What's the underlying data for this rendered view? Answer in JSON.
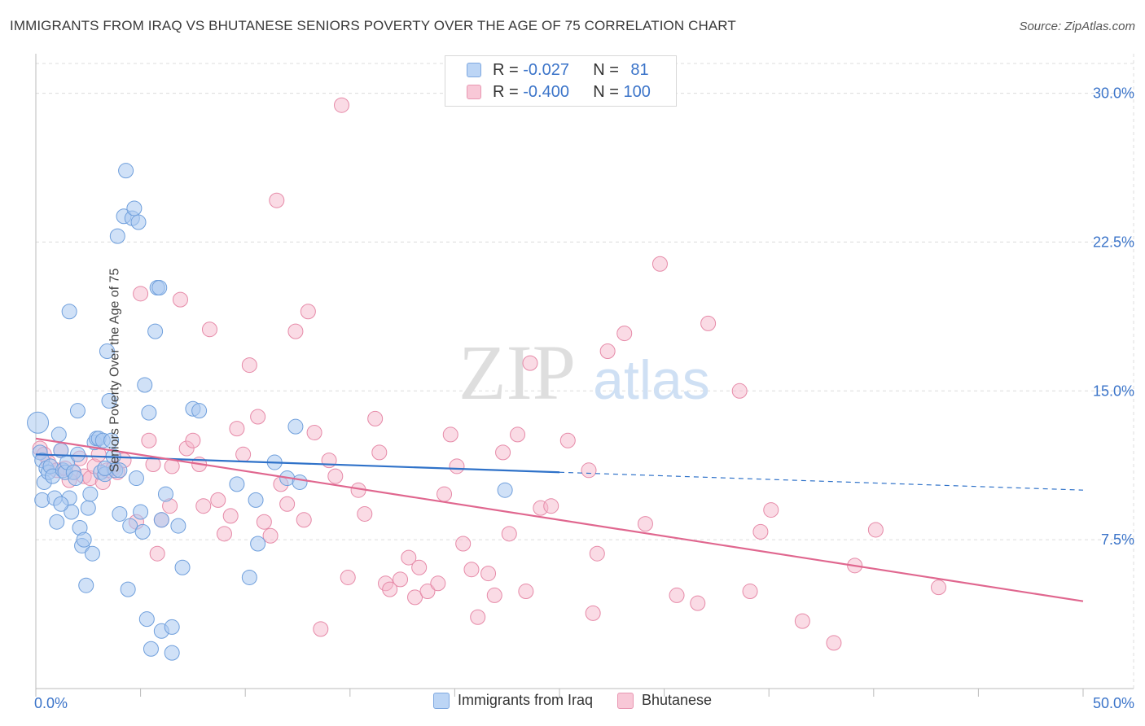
{
  "header": {
    "title": "IMMIGRANTS FROM IRAQ VS BHUTANESE SENIORS POVERTY OVER THE AGE OF 75 CORRELATION CHART",
    "source": "Source: ZipAtlas.com"
  },
  "watermark": {
    "zip": "ZIP",
    "atlas": "atlas"
  },
  "legend": {
    "rows": [
      {
        "r_label": "R =",
        "r_value": "-0.027",
        "n_label": "N =",
        "n_value": "81"
      },
      {
        "r_label": "R =",
        "r_value": "-0.400",
        "n_label": "N =",
        "n_value": "100"
      }
    ]
  },
  "colors": {
    "blue_fill": "#a9c8f0",
    "blue_stroke": "#6f9fdc",
    "blue_line": "#2f72c9",
    "pink_fill": "#f5b8cb",
    "pink_stroke": "#e68aa8",
    "pink_line": "#e0678f",
    "axis_text": "#3b74c9",
    "grid": "#dcdcdc"
  },
  "chart_data": {
    "type": "scatter",
    "title": "IMMIGRANTS FROM IRAQ VS BHUTANESE SENIORS POVERTY OVER THE AGE OF 75 CORRELATION CHART",
    "xlabel": "",
    "ylabel": "Seniors Poverty Over the Age of 75",
    "xlim": [
      0,
      50
    ],
    "ylim": [
      0,
      31.5
    ],
    "x_tick_labels": [
      "0.0%",
      "50.0%"
    ],
    "y_ticks": [
      7.5,
      15.0,
      22.5,
      30.0
    ],
    "y_tick_labels": [
      "7.5%",
      "15.0%",
      "22.5%",
      "30.0%"
    ],
    "grid": true,
    "legend_position": "top-center",
    "series": [
      {
        "name": "Immigrants from Iraq",
        "color": "#a9c8f0",
        "trend": {
          "x": [
            0,
            25,
            50
          ],
          "y": [
            11.8,
            10.9,
            10.0
          ],
          "solid_until": 25
        },
        "points": [
          [
            0.1,
            13.4
          ],
          [
            0.2,
            11.9
          ],
          [
            0.3,
            11.5
          ],
          [
            0.4,
            10.4
          ],
          [
            0.5,
            11.1
          ],
          [
            0.6,
            10.9
          ],
          [
            0.7,
            11.2
          ],
          [
            0.8,
            10.7
          ],
          [
            0.3,
            9.5
          ],
          [
            0.9,
            9.6
          ],
          [
            1.0,
            8.4
          ],
          [
            1.1,
            12.8
          ],
          [
            1.2,
            12.0
          ],
          [
            1.3,
            11.0
          ],
          [
            1.4,
            10.9
          ],
          [
            1.5,
            11.4
          ],
          [
            1.6,
            9.6
          ],
          [
            1.7,
            8.9
          ],
          [
            1.8,
            10.9
          ],
          [
            1.9,
            10.6
          ],
          [
            1.6,
            19.0
          ],
          [
            2.0,
            14.0
          ],
          [
            2.1,
            8.1
          ],
          [
            2.2,
            7.2
          ],
          [
            2.3,
            7.5
          ],
          [
            2.4,
            5.2
          ],
          [
            2.5,
            9.1
          ],
          [
            2.6,
            9.8
          ],
          [
            2.7,
            6.8
          ],
          [
            2.8,
            12.4
          ],
          [
            2.9,
            12.6
          ],
          [
            3.0,
            12.6
          ],
          [
            3.1,
            10.9
          ],
          [
            3.2,
            12.5
          ],
          [
            3.3,
            10.8
          ],
          [
            3.4,
            17.0
          ],
          [
            3.5,
            14.5
          ],
          [
            3.6,
            12.5
          ],
          [
            3.7,
            11.7
          ],
          [
            3.8,
            11.0
          ],
          [
            3.9,
            22.8
          ],
          [
            4.0,
            8.8
          ],
          [
            4.2,
            23.8
          ],
          [
            4.3,
            26.1
          ],
          [
            4.4,
            5.0
          ],
          [
            4.5,
            8.2
          ],
          [
            4.6,
            23.7
          ],
          [
            4.7,
            24.2
          ],
          [
            4.8,
            10.6
          ],
          [
            4.9,
            23.5
          ],
          [
            5.0,
            8.9
          ],
          [
            5.1,
            7.9
          ],
          [
            5.2,
            15.3
          ],
          [
            5.3,
            3.5
          ],
          [
            5.4,
            13.9
          ],
          [
            5.5,
            2.0
          ],
          [
            5.7,
            18.0
          ],
          [
            5.8,
            20.2
          ],
          [
            5.9,
            20.2
          ],
          [
            6.0,
            2.9
          ],
          [
            6.2,
            9.8
          ],
          [
            6.5,
            3.1
          ],
          [
            6.8,
            8.2
          ],
          [
            6.5,
            1.8
          ],
          [
            7.0,
            6.1
          ],
          [
            7.5,
            14.1
          ],
          [
            7.8,
            14.0
          ],
          [
            9.6,
            10.3
          ],
          [
            10.2,
            5.6
          ],
          [
            10.5,
            9.5
          ],
          [
            10.6,
            7.3
          ],
          [
            11.4,
            11.4
          ],
          [
            12.0,
            10.6
          ],
          [
            12.4,
            13.2
          ],
          [
            12.6,
            10.4
          ],
          [
            22.4,
            10.0
          ],
          [
            3.3,
            11.1
          ],
          [
            4.0,
            11.0
          ],
          [
            2.0,
            11.8
          ],
          [
            1.2,
            9.3
          ],
          [
            6.0,
            8.5
          ]
        ]
      },
      {
        "name": "Bhutanese",
        "color": "#f5b8cb",
        "trend": {
          "x": [
            0,
            50
          ],
          "y": [
            12.6,
            4.4
          ]
        },
        "points": [
          [
            0.2,
            12.1
          ],
          [
            0.4,
            11.8
          ],
          [
            0.6,
            11.4
          ],
          [
            1.0,
            11.0
          ],
          [
            1.2,
            12.0
          ],
          [
            1.4,
            11.1
          ],
          [
            1.6,
            10.5
          ],
          [
            1.8,
            10.9
          ],
          [
            2.1,
            11.6
          ],
          [
            2.3,
            10.7
          ],
          [
            2.6,
            10.6
          ],
          [
            2.8,
            11.2
          ],
          [
            3.0,
            11.8
          ],
          [
            3.2,
            10.4
          ],
          [
            3.4,
            11.0
          ],
          [
            3.7,
            11.1
          ],
          [
            3.9,
            10.9
          ],
          [
            4.2,
            11.5
          ],
          [
            4.8,
            8.4
          ],
          [
            5.0,
            19.9
          ],
          [
            5.4,
            12.5
          ],
          [
            5.6,
            11.3
          ],
          [
            5.8,
            6.8
          ],
          [
            6.0,
            8.5
          ],
          [
            6.4,
            9.2
          ],
          [
            6.5,
            11.2
          ],
          [
            6.9,
            19.6
          ],
          [
            7.2,
            12.1
          ],
          [
            7.5,
            12.5
          ],
          [
            7.8,
            11.3
          ],
          [
            8.0,
            9.2
          ],
          [
            8.3,
            18.1
          ],
          [
            8.7,
            9.5
          ],
          [
            9.0,
            7.8
          ],
          [
            9.3,
            8.7
          ],
          [
            9.6,
            13.1
          ],
          [
            9.9,
            11.8
          ],
          [
            10.2,
            16.3
          ],
          [
            10.6,
            13.7
          ],
          [
            10.9,
            8.4
          ],
          [
            11.2,
            7.7
          ],
          [
            11.5,
            24.6
          ],
          [
            11.7,
            10.3
          ],
          [
            12.0,
            9.3
          ],
          [
            12.4,
            18.0
          ],
          [
            12.8,
            8.5
          ],
          [
            13.0,
            19.0
          ],
          [
            13.3,
            12.9
          ],
          [
            13.6,
            3.0
          ],
          [
            14.0,
            11.5
          ],
          [
            14.3,
            10.7
          ],
          [
            14.6,
            29.4
          ],
          [
            14.9,
            5.6
          ],
          [
            15.4,
            10.0
          ],
          [
            15.7,
            8.8
          ],
          [
            16.2,
            13.6
          ],
          [
            16.4,
            11.9
          ],
          [
            16.7,
            5.3
          ],
          [
            16.9,
            5.0
          ],
          [
            17.4,
            5.5
          ],
          [
            17.8,
            6.6
          ],
          [
            18.1,
            4.6
          ],
          [
            18.3,
            6.1
          ],
          [
            18.7,
            4.9
          ],
          [
            19.2,
            5.3
          ],
          [
            19.5,
            9.8
          ],
          [
            19.8,
            12.8
          ],
          [
            20.1,
            11.2
          ],
          [
            20.4,
            7.3
          ],
          [
            20.8,
            6.0
          ],
          [
            21.1,
            3.6
          ],
          [
            21.6,
            5.8
          ],
          [
            21.9,
            4.7
          ],
          [
            22.3,
            11.9
          ],
          [
            22.6,
            7.8
          ],
          [
            23.0,
            12.8
          ],
          [
            23.4,
            4.9
          ],
          [
            23.6,
            16.4
          ],
          [
            24.1,
            9.1
          ],
          [
            24.6,
            9.2
          ],
          [
            25.4,
            12.5
          ],
          [
            26.4,
            11.0
          ],
          [
            26.6,
            3.8
          ],
          [
            26.8,
            6.8
          ],
          [
            27.3,
            17.0
          ],
          [
            28.1,
            17.9
          ],
          [
            29.1,
            8.3
          ],
          [
            29.8,
            21.4
          ],
          [
            30.6,
            4.7
          ],
          [
            31.6,
            4.3
          ],
          [
            32.1,
            18.4
          ],
          [
            33.6,
            15.0
          ],
          [
            34.1,
            4.9
          ],
          [
            34.6,
            7.9
          ],
          [
            35.1,
            9.0
          ],
          [
            36.6,
            3.4
          ],
          [
            38.1,
            2.3
          ],
          [
            39.1,
            6.2
          ],
          [
            43.1,
            5.1
          ],
          [
            40.1,
            8.0
          ]
        ]
      }
    ]
  },
  "bottom_legend": {
    "items": [
      {
        "label": "Immigrants from Iraq"
      },
      {
        "label": "Bhutanese"
      }
    ]
  }
}
